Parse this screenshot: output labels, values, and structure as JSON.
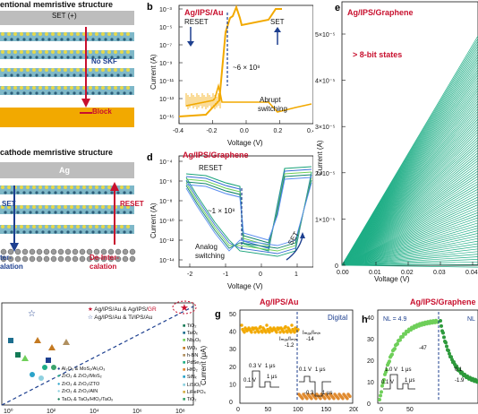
{
  "panel_a": {
    "title": "entional memristive structure",
    "set_label": "SET (+)",
    "no_skf": "No SKF",
    "block": "Block"
  },
  "panel_c": {
    "title": "cathode memristive structure",
    "electrode_top": "Ag",
    "set": "SET",
    "reset": "RESET",
    "left_bottom": "ter-",
    "left_bottom2": "alation",
    "deinter": "De-Inter-",
    "calation": "calation"
  },
  "panel_b": {
    "letter": "b",
    "title": "Ag/IPS/Au",
    "reset": "RESET",
    "set": "SET",
    "ratio": "~6 × 10⁸",
    "abrupt": "Abrupt",
    "switching": "switching",
    "ylabel": "Current (A)",
    "xlabel": "Voltage (V)",
    "yticks": [
      "10⁻³",
      "10⁻⁵",
      "10⁻⁷",
      "10⁻⁹",
      "10⁻¹¹",
      "10⁻¹³",
      "10⁻¹⁵"
    ],
    "xticks": [
      "-0.4",
      "-0.2",
      "0.0",
      "0.2",
      "0.4"
    ]
  },
  "panel_d": {
    "letter": "d",
    "title": "Ag/IPS/Graphene",
    "reset": "RESET",
    "set": "SET",
    "ratio": "~1 × 10⁸",
    "analog": "Analog",
    "switching": "switching",
    "ylabel": "Current (A)",
    "xlabel": "Voltage (V)",
    "yticks": [
      "10⁻⁴",
      "10⁻⁶",
      "10⁻⁸",
      "10⁻¹⁰",
      "10⁻¹²",
      "10⁻¹⁴"
    ],
    "xticks": [
      "-2",
      "-1",
      "0",
      "1"
    ]
  },
  "panel_e": {
    "letter": "e",
    "title": "Ag/IPS/Graphene",
    "subtitle": "> 8-bit states",
    "ylabel": "Current (A)",
    "xlabel": "Voltage (V)",
    "yticks": [
      "5×10⁻⁵",
      "4×10⁻⁵",
      "3×10⁻⁵",
      "2×10⁻⁵",
      "1×10⁻⁵",
      "0"
    ],
    "xticks": [
      "0.00",
      "0.01",
      "0.02",
      "0.03",
      "0.04"
    ]
  },
  "panel_f": {
    "legend": [
      {
        "symbol": "★",
        "text": "Ag/IPS/Au & Ag/IPS/",
        "highlight": "GR"
      },
      {
        "symbol": "☆",
        "text": "Ag/IPS/Au & Ti/IPS/Au"
      }
    ],
    "materials_right": [
      "TiO₂",
      "TaOₓ",
      "Nb₂O₅",
      "WOₓ",
      "h-BN",
      "PdSe₂",
      "HfO₂",
      "SiNₓ",
      "LiSiOₓ",
      "LiFePO₄",
      "TiO₂"
    ],
    "materials_left": [
      "Al₂O₃ & MoS₂/Al₂O₃",
      "ZrO₂ & ZrO₂/MoS₂",
      "ZrO₂ & ZrO₂/ZTO",
      "ZrO₂ & ZrO₂/AlN",
      "TaOₓ & TaOₓ/HfO₂/TaOₓ"
    ],
    "xticks": [
      "10⁰",
      "10²",
      "10⁴",
      "10⁶",
      "10⁸"
    ]
  },
  "panel_g": {
    "letter": "g",
    "title": "Ag/IPS/Au",
    "mode": "Digital",
    "ratio_top": "Iₘₐₓ/Iₘᵢₙ",
    "ratio_top_val": "-1.2",
    "ratio_right": "Iₘₐₓ/Iₘᵢₙ",
    "ratio_right_val": "-14",
    "pulse1_v": "0.3 V",
    "pulse1_t": "1 μs",
    "pulse1_read": "0.1 V",
    "pulse1_read_t": "1 μs",
    "pulse2_v": "0.1 V",
    "pulse2_t": "1 μs",
    "pulse2_read": "-0.3",
    "pulse2_read_t": "1 μs",
    "ylabel": "Current (μA)",
    "yticks": [
      "50",
      "40",
      "30",
      "20",
      "10",
      "0"
    ],
    "xticks": [
      "0",
      "50",
      "100",
      "150",
      "200"
    ]
  },
  "panel_h": {
    "letter": "h",
    "title": "Ag/IPS/Graphene",
    "nl_left": "NL = 4.9",
    "nl_right": "NL",
    "ratio_val": "-47",
    "pulse1_v": "1.0 V",
    "pulse1_t": "1 μs",
    "pulse1_read": "0.1 V",
    "pulse1_read_t": "1 μs",
    "pulse2_v": "0.1",
    "pulse2_read": "-1.9",
    "yticks": [
      "40",
      "30",
      "20",
      "10",
      "0"
    ],
    "xticks": [
      "0",
      "50"
    ]
  }
}
